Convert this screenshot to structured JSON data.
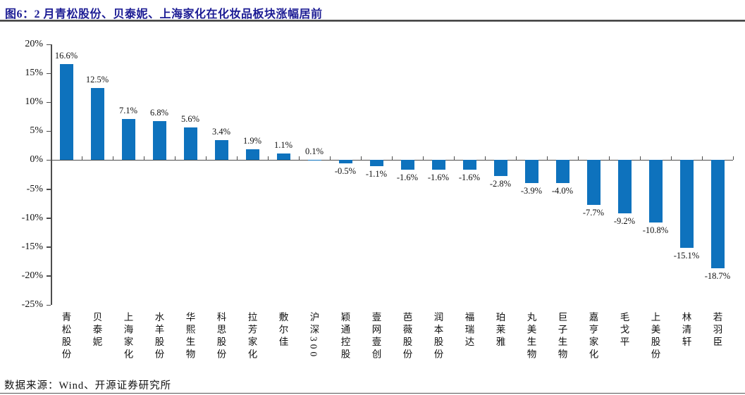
{
  "header": {
    "title": "图6：2 月青松股份、贝泰妮、上海家化在化妆品板块涨幅居前"
  },
  "footer": {
    "source": "数据来源：Wind、开源证券研究所"
  },
  "colors": {
    "bar": "#0e72bd",
    "title": "#1c1c94",
    "axis": "#4d4d4d",
    "text": "#111111"
  },
  "chart_data": {
    "type": "bar",
    "title": "图6：2 月青松股份、贝泰妮、上海家化在化妆品板块涨幅居前",
    "categories": [
      "青松股份",
      "贝泰妮",
      "上海家化",
      "水羊股份",
      "华熙生物",
      "科思股份",
      "拉芳家化",
      "敷尔佳",
      "沪深300",
      "颖通控股",
      "壹网壹创",
      "芭薇股份",
      "润本股份",
      "福瑞达",
      "珀莱雅",
      "丸美生物",
      "巨子生物",
      "嘉亨家化",
      "毛戈平",
      "上美股份",
      "林清轩",
      "若羽臣"
    ],
    "values": [
      16.6,
      12.5,
      7.1,
      6.8,
      5.6,
      3.4,
      1.9,
      1.1,
      0.1,
      -0.5,
      -1.1,
      -1.6,
      -1.6,
      -1.6,
      -2.8,
      -3.9,
      -4.0,
      -7.7,
      -9.2,
      -10.8,
      -15.1,
      -18.7
    ],
    "value_labels": [
      "16.6%",
      "12.5%",
      "7.1%",
      "6.8%",
      "5.6%",
      "3.4%",
      "1.9%",
      "1.1%",
      "0.1%",
      "-0.5%",
      "-1.1%",
      "-1.6%",
      "-1.6%",
      "-1.6%",
      "-2.8%",
      "-3.9%",
      "-4.0%",
      "-7.7%",
      "-9.2%",
      "-10.8%",
      "-15.1%",
      "-18.7%"
    ],
    "y_tick_labels": [
      "20%",
      "15%",
      "10%",
      "5%",
      "0%",
      "-5%",
      "-10%",
      "-15%",
      "-20%",
      "-25%"
    ],
    "y_tick_values": [
      20,
      15,
      10,
      5,
      0,
      -5,
      -10,
      -15,
      -20,
      -25
    ],
    "xlabel": "",
    "ylabel": "",
    "ylim": [
      -25,
      20
    ],
    "grid": false,
    "legend": "none"
  }
}
